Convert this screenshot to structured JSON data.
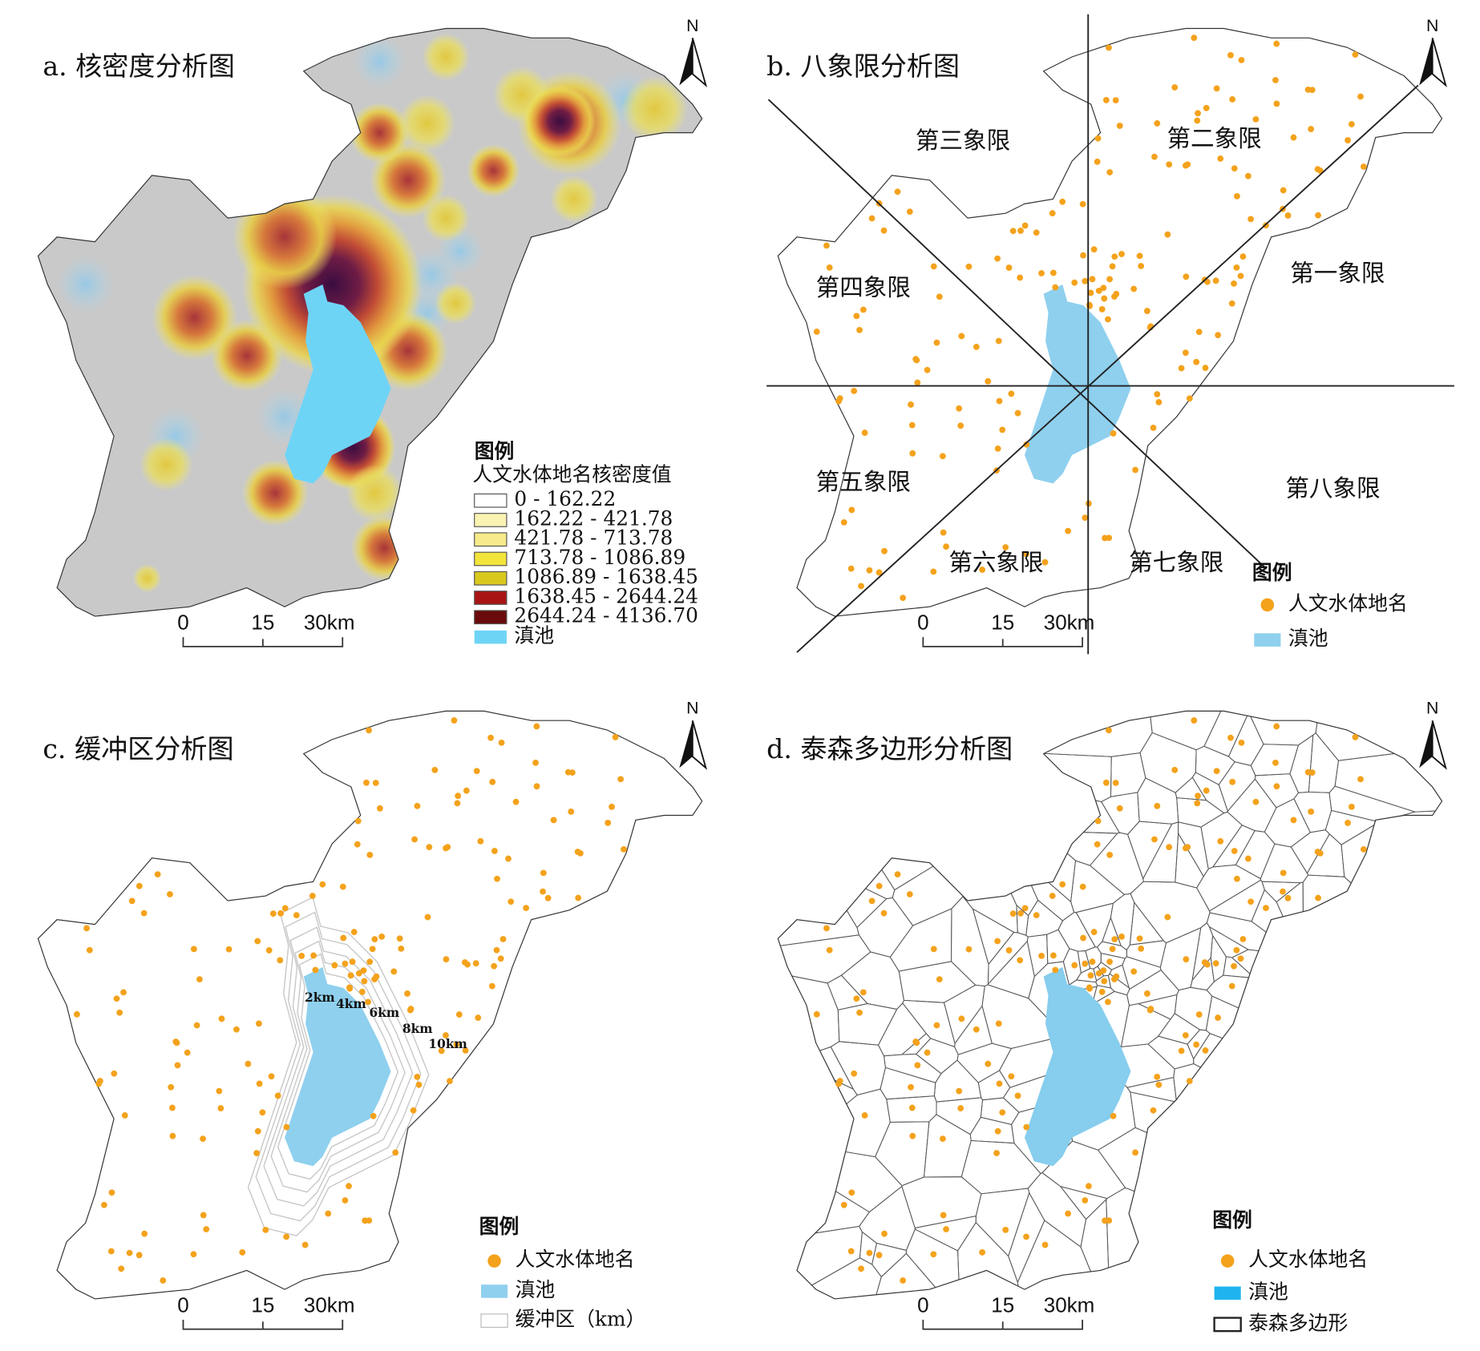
{
  "panels": [
    {
      "title": "a. 核密度分析图",
      "north": "N",
      "scale": [
        "0",
        "15",
        "30km"
      ],
      "legend": {
        "title": "图例",
        "subtitle": "人文水体地名核密度值",
        "items": [
          "0 - 162.22",
          "162.22 - 421.78",
          "421.78 - 713.78",
          "713.78 - 1086.89",
          "1086.89 - 1638.45",
          "1638.45 - 2644.24",
          "2644.24 - 4136.70",
          "滇池"
        ]
      }
    },
    {
      "title": "b. 八象限分析图",
      "north": "N",
      "scale": [
        "0",
        "15",
        "30km"
      ],
      "quadrants": [
        "第一象限",
        "第二象限",
        "第三象限",
        "第四象限",
        "第五象限",
        "第六象限",
        "第七象限",
        "第八象限"
      ],
      "legend": {
        "title": "图例",
        "items": [
          "人文水体地名",
          "滇池"
        ]
      }
    },
    {
      "title": "c. 缓冲区分析图",
      "north": "N",
      "scale": [
        "0",
        "15",
        "30km"
      ],
      "buffers": [
        "2km",
        "4km",
        "6km",
        "8km",
        "10km"
      ],
      "legend": {
        "title": "图例",
        "items": [
          "人文水体地名",
          "滇池",
          "缓冲区（km）"
        ]
      }
    },
    {
      "title": "d. 泰森多边形分析图",
      "north": "N",
      "scale": [
        "0",
        "15",
        "30km"
      ],
      "legend": {
        "title": "图例",
        "items": [
          "人文水体地名",
          "滇池",
          "泰森多边形"
        ]
      }
    }
  ]
}
